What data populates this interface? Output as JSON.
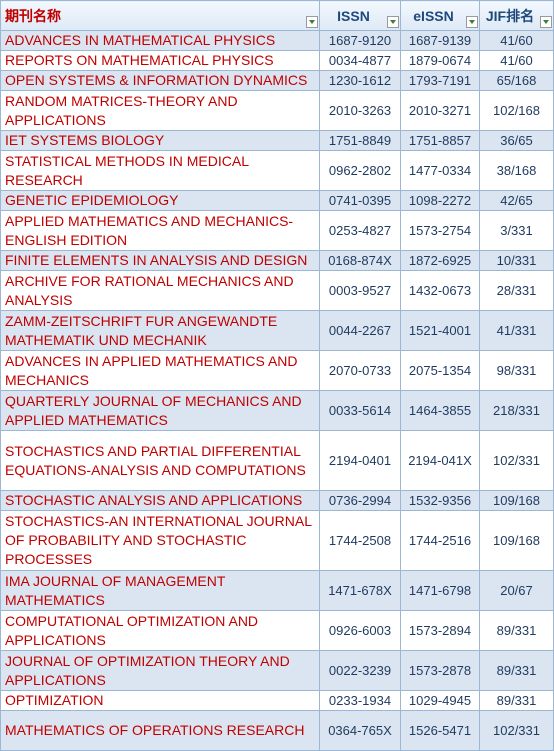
{
  "columns": {
    "name": "期刊名称",
    "issn": "ISSN",
    "eissn": "eISSN",
    "jif": "JIF排名"
  },
  "rows": [
    {
      "name": "ADVANCES IN MATHEMATICAL PHYSICS",
      "issn": "1687-9120",
      "eissn": "1687-9139",
      "jif": "41/60"
    },
    {
      "name": "REPORTS ON MATHEMATICAL PHYSICS",
      "issn": "0034-4877",
      "eissn": "1879-0674",
      "jif": "41/60"
    },
    {
      "name": "OPEN SYSTEMS & INFORMATION DYNAMICS",
      "issn": "1230-1612",
      "eissn": "1793-7191",
      "jif": "65/168"
    },
    {
      "name": "RANDOM MATRICES-THEORY AND APPLICATIONS",
      "issn": "2010-3263",
      "eissn": "2010-3271",
      "jif": "102/168"
    },
    {
      "name": "IET SYSTEMS BIOLOGY",
      "issn": "1751-8849",
      "eissn": "1751-8857",
      "jif": "36/65"
    },
    {
      "name": "STATISTICAL METHODS IN MEDICAL RESEARCH",
      "issn": "0962-2802",
      "eissn": "1477-0334",
      "jif": "38/168"
    },
    {
      "name": "GENETIC EPIDEMIOLOGY",
      "issn": "0741-0395",
      "eissn": "1098-2272",
      "jif": "42/65"
    },
    {
      "name": "APPLIED MATHEMATICS AND MECHANICS-ENGLISH EDITION",
      "issn": "0253-4827",
      "eissn": "1573-2754",
      "jif": "3/331"
    },
    {
      "name": "FINITE ELEMENTS IN ANALYSIS AND DESIGN",
      "issn": "0168-874X",
      "eissn": "1872-6925",
      "jif": "10/331"
    },
    {
      "name": "ARCHIVE FOR RATIONAL MECHANICS AND ANALYSIS",
      "issn": "0003-9527",
      "eissn": "1432-0673",
      "jif": "28/331"
    },
    {
      "name": "ZAMM-ZEITSCHRIFT FUR ANGEWANDTE MATHEMATIK UND MECHANIK",
      "issn": "0044-2267",
      "eissn": "1521-4001",
      "jif": "41/331"
    },
    {
      "name": "ADVANCES IN APPLIED MATHEMATICS AND MECHANICS",
      "issn": "2070-0733",
      "eissn": "2075-1354",
      "jif": "98/331"
    },
    {
      "name": "QUARTERLY JOURNAL OF MECHANICS AND APPLIED MATHEMATICS",
      "issn": "0033-5614",
      "eissn": "1464-3855",
      "jif": "218/331"
    },
    {
      "name": "STOCHASTICS AND PARTIAL DIFFERENTIAL EQUATIONS-ANALYSIS AND COMPUTATIONS",
      "issn": "2194-0401",
      "eissn": "2194-041X",
      "jif": "102/331"
    },
    {
      "name": "STOCHASTIC ANALYSIS AND APPLICATIONS",
      "issn": "0736-2994",
      "eissn": "1532-9356",
      "jif": "109/168"
    },
    {
      "name": "STOCHASTICS-AN INTERNATIONAL JOURNAL OF PROBABILITY AND STOCHASTIC PROCESSES",
      "issn": "1744-2508",
      "eissn": "1744-2516",
      "jif": "109/168"
    },
    {
      "name": "IMA JOURNAL OF MANAGEMENT MATHEMATICS",
      "issn": "1471-678X",
      "eissn": "1471-6798",
      "jif": "20/67"
    },
    {
      "name": "COMPUTATIONAL OPTIMIZATION AND APPLICATIONS",
      "issn": "0926-6003",
      "eissn": "1573-2894",
      "jif": "89/331"
    },
    {
      "name": "JOURNAL OF OPTIMIZATION THEORY AND APPLICATIONS",
      "issn": "0022-3239",
      "eissn": "1573-2878",
      "jif": "89/331"
    },
    {
      "name": "OPTIMIZATION",
      "issn": "0233-1934",
      "eissn": "1029-4945",
      "jif": "89/331"
    },
    {
      "name": "MATHEMATICS OF OPERATIONS RESEARCH",
      "issn": "0364-765X",
      "eissn": "1526-5471",
      "jif": "102/331"
    }
  ],
  "row_line_counts": [
    1,
    1,
    1,
    2,
    1,
    2,
    1,
    2,
    1,
    2,
    2,
    2,
    2,
    3,
    1,
    3,
    2,
    2,
    2,
    1,
    2
  ],
  "colors": {
    "header_text": "#1f497d",
    "name_text": "#c00000",
    "band": "#dbe5f1",
    "grid": "#9bb7d4"
  },
  "icons": {
    "filter": "filter-dropdown-icon"
  }
}
